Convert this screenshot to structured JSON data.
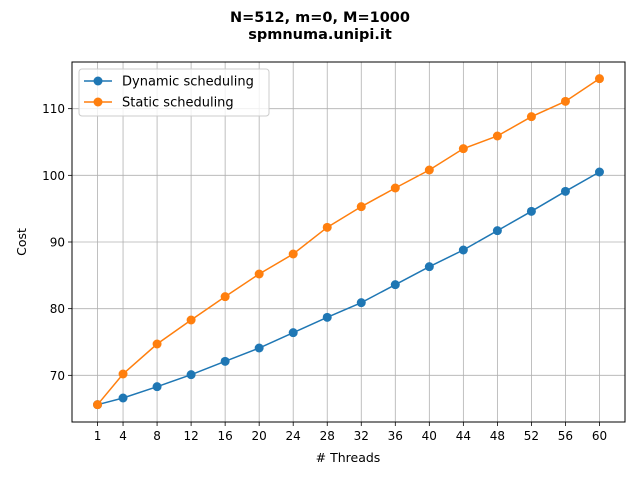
{
  "chart_data": {
    "type": "line",
    "title": [
      "N=512, m=0, M=1000",
      "spmnuma.unipi.it"
    ],
    "xlabel": "# Threads",
    "ylabel": "Cost",
    "x": [
      1,
      4,
      8,
      12,
      16,
      20,
      24,
      28,
      32,
      36,
      40,
      44,
      48,
      52,
      56,
      60
    ],
    "x_ticks": [
      1,
      4,
      8,
      12,
      16,
      20,
      24,
      28,
      32,
      36,
      40,
      44,
      48,
      52,
      56,
      60
    ],
    "y_ticks": [
      70,
      80,
      90,
      100,
      110
    ],
    "xlim": [
      -2.0,
      63.0
    ],
    "ylim": [
      63.0,
      117.0
    ],
    "grid": true,
    "legend_position": "top-left",
    "series": [
      {
        "name": "Dynamic scheduling",
        "color": "#1f77b4",
        "values": [
          65.6,
          66.6,
          68.3,
          70.1,
          72.1,
          74.1,
          76.4,
          78.7,
          80.9,
          83.6,
          86.3,
          88.8,
          91.7,
          94.6,
          97.6,
          100.5
        ]
      },
      {
        "name": "Static scheduling",
        "color": "#ff7f0e",
        "values": [
          65.6,
          70.2,
          74.7,
          78.3,
          81.8,
          85.2,
          88.2,
          92.2,
          95.3,
          98.1,
          100.8,
          104.0,
          105.9,
          108.8,
          111.1,
          114.5
        ]
      }
    ]
  }
}
